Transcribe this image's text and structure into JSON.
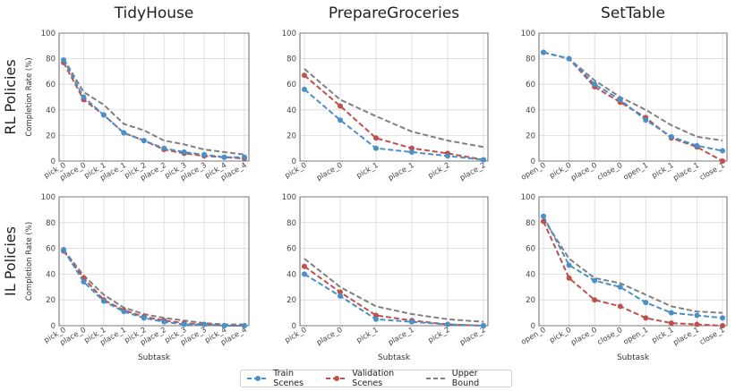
{
  "figure": {
    "col_titles": [
      "TidyHouse",
      "PrepareGroceries",
      "SetTable"
    ],
    "row_titles": [
      "RL Policies",
      "IL Policies"
    ],
    "ylabel": "Completion Rate (%)",
    "xlabel": "Subtask",
    "legend": [
      "Train Scenes",
      "Validation Scenes",
      "Upper Bound"
    ],
    "colors": {
      "train": "#4a90c8",
      "validation": "#c0504d",
      "upper": "#808080"
    }
  },
  "chart_data": [
    {
      "type": "line",
      "row": "RL Policies",
      "title": "TidyHouse",
      "categories": [
        "pick_0",
        "place_0",
        "pick_1",
        "place_1",
        "pick_2",
        "place_2",
        "pick_3",
        "place_3",
        "pick_4",
        "place_4"
      ],
      "ylim": [
        0,
        100
      ],
      "yticks": [
        0,
        20,
        40,
        60,
        80,
        100
      ],
      "grid": true,
      "series": [
        {
          "name": "Train Scenes",
          "values": [
            79,
            50,
            36,
            22,
            16,
            10,
            7,
            5,
            3,
            3
          ]
        },
        {
          "name": "Validation Scenes",
          "values": [
            77,
            48,
            36,
            22,
            16,
            9,
            6,
            4,
            3,
            2
          ]
        },
        {
          "name": "Upper Bound",
          "values": [
            80,
            54,
            44,
            29,
            24,
            16,
            13,
            9,
            7,
            5
          ]
        }
      ]
    },
    {
      "type": "line",
      "row": "RL Policies",
      "title": "PrepareGroceries",
      "categories": [
        "pick_0",
        "place_0",
        "pick_1",
        "place_1",
        "pick_2",
        "place_2"
      ],
      "ylim": [
        0,
        100
      ],
      "yticks": [
        0,
        20,
        40,
        60,
        80,
        100
      ],
      "grid": true,
      "series": [
        {
          "name": "Train Scenes",
          "values": [
            56,
            32,
            10,
            7,
            4,
            1
          ]
        },
        {
          "name": "Validation Scenes",
          "values": [
            67,
            43,
            18,
            10,
            6,
            1
          ]
        },
        {
          "name": "Upper Bound",
          "values": [
            72,
            48,
            35,
            23,
            16,
            11
          ]
        }
      ]
    },
    {
      "type": "line",
      "row": "RL Policies",
      "title": "SetTable",
      "categories": [
        "open_0",
        "pick_0",
        "place_0",
        "close_0",
        "open_1",
        "pick_1",
        "place_1",
        "close_1"
      ],
      "ylim": [
        0,
        100
      ],
      "yticks": [
        0,
        20,
        40,
        60,
        80,
        100
      ],
      "grid": true,
      "series": [
        {
          "name": "Train Scenes",
          "values": [
            85,
            80,
            60,
            48,
            32,
            19,
            12,
            8
          ]
        },
        {
          "name": "Validation Scenes",
          "values": [
            85,
            80,
            58,
            46,
            34,
            18,
            11,
            0
          ]
        },
        {
          "name": "Upper Bound",
          "values": [
            85,
            80,
            63,
            50,
            40,
            28,
            19,
            16
          ]
        }
      ]
    },
    {
      "type": "line",
      "row": "IL Policies",
      "title": "TidyHouse",
      "categories": [
        "pick_0",
        "place_0",
        "pick_1",
        "place_1",
        "pick_2",
        "place_2",
        "pick_3",
        "place_3",
        "pick_4",
        "place_4"
      ],
      "ylim": [
        0,
        100
      ],
      "yticks": [
        0,
        20,
        40,
        60,
        80,
        100
      ],
      "grid": true,
      "series": [
        {
          "name": "Train Scenes",
          "values": [
            59,
            34,
            19,
            11,
            6,
            3,
            1,
            1,
            0,
            0
          ]
        },
        {
          "name": "Validation Scenes",
          "values": [
            58,
            37,
            20,
            12,
            7,
            4,
            2,
            1,
            0,
            0
          ]
        },
        {
          "name": "Upper Bound",
          "values": [
            59,
            39,
            24,
            14,
            9,
            6,
            4,
            2,
            1,
            1
          ]
        }
      ]
    },
    {
      "type": "line",
      "row": "IL Policies",
      "title": "PrepareGroceries",
      "categories": [
        "pick_0",
        "place_0",
        "pick_1",
        "place_1",
        "pick_2",
        "place_2"
      ],
      "ylim": [
        0,
        100
      ],
      "yticks": [
        0,
        20,
        40,
        60,
        80,
        100
      ],
      "grid": true,
      "series": [
        {
          "name": "Train Scenes",
          "values": [
            40,
            23,
            5,
            3,
            1,
            0
          ]
        },
        {
          "name": "Validation Scenes",
          "values": [
            46,
            26,
            8,
            4,
            1,
            0
          ]
        },
        {
          "name": "Upper Bound",
          "values": [
            52,
            30,
            15,
            9,
            5,
            3
          ]
        }
      ]
    },
    {
      "type": "line",
      "row": "IL Policies",
      "title": "SetTable",
      "categories": [
        "open_0",
        "pick_0",
        "place_0",
        "close_0",
        "open_1",
        "pick_1",
        "place_1",
        "close_1"
      ],
      "ylim": [
        0,
        100
      ],
      "yticks": [
        0,
        20,
        40,
        60,
        80,
        100
      ],
      "grid": true,
      "series": [
        {
          "name": "Train Scenes",
          "values": [
            85,
            47,
            35,
            30,
            18,
            10,
            8,
            6
          ]
        },
        {
          "name": "Validation Scenes",
          "values": [
            81,
            37,
            20,
            15,
            6,
            2,
            1,
            0
          ]
        },
        {
          "name": "Upper Bound",
          "values": [
            83,
            52,
            37,
            33,
            24,
            15,
            11,
            10
          ]
        }
      ]
    }
  ]
}
